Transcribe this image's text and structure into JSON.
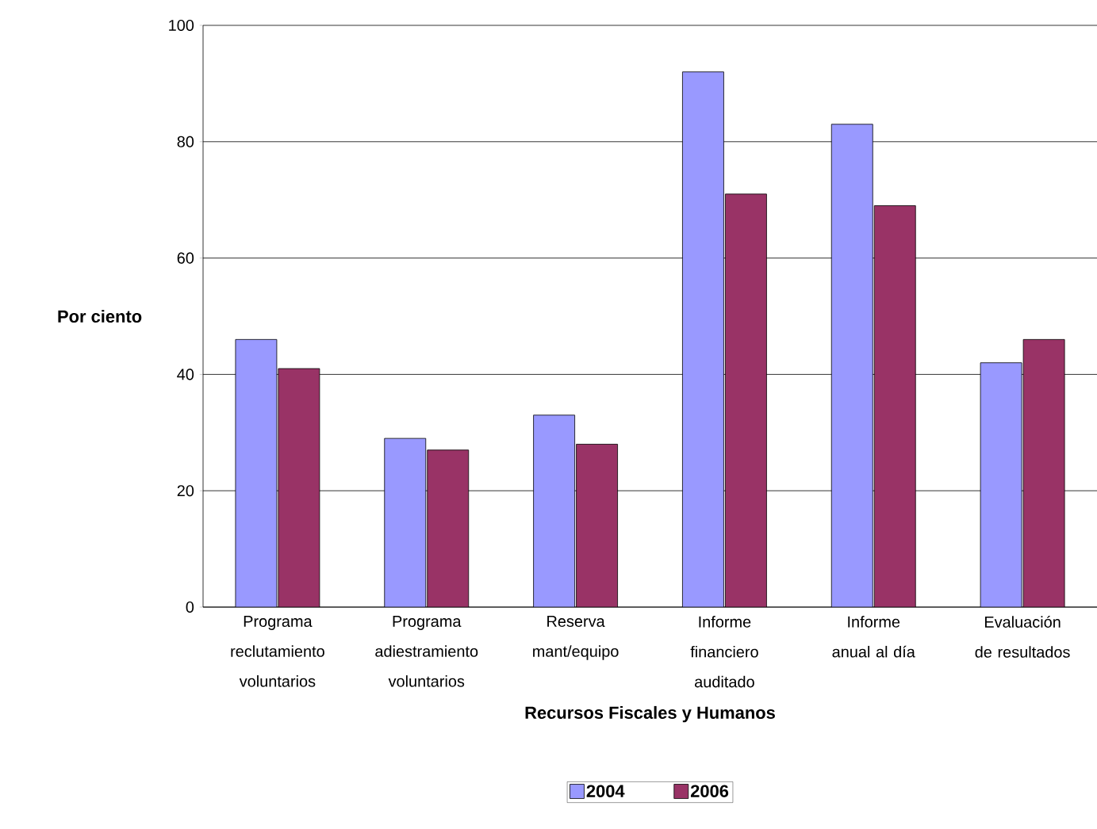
{
  "chart_data": {
    "type": "bar",
    "xlabel": "Recursos Fiscales y Humanos",
    "ylabel": "Por ciento",
    "categories": [
      "Programa reclutamiento voluntarios",
      "Programa adiestramiento voluntarios",
      "Reserva mant/equipo",
      "Informe financiero auditado",
      "Informe anual al día",
      "Evaluación de resultados"
    ],
    "series": [
      {
        "name": "2004",
        "color": "#9999ff",
        "values": [
          46,
          29,
          33,
          92,
          83,
          42
        ]
      },
      {
        "name": "2006",
        "color": "#993366",
        "values": [
          41,
          27,
          28,
          71,
          69,
          46
        ]
      }
    ],
    "ylim": [
      0,
      100
    ],
    "yticks": [
      0,
      20,
      40,
      60,
      80,
      100
    ],
    "grid": "y",
    "legend": "bottom"
  }
}
